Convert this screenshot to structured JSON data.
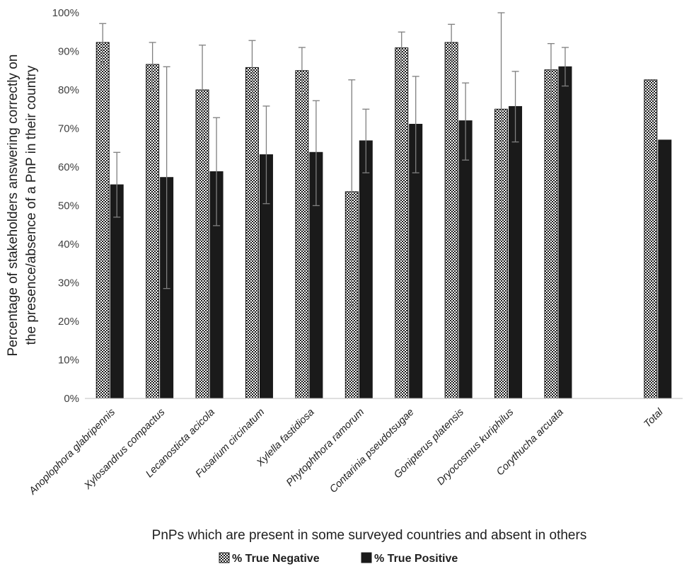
{
  "chart_data": {
    "type": "bar",
    "categories": [
      "Anoplophora glabripennis",
      "Xylosandrus compactus",
      "Lecanosticta acicola",
      "Fusarium circinatum",
      "Xylella fastidiosa",
      "Phytophthora ramorum",
      "Contarinia pseudotsugae",
      "Gonipterus platensis",
      "Dryocosmus kuriphilus",
      "Corythucha arcuata",
      "",
      "Total"
    ],
    "series": [
      {
        "name": "% True Negative",
        "pattern": "checkered",
        "values": [
          92.3,
          86.6,
          80.0,
          85.8,
          85.0,
          53.6,
          90.9,
          92.3,
          75.0,
          85.2,
          null,
          82.6
        ],
        "error_low": [
          87.0,
          80.0,
          67.5,
          78.5,
          79.0,
          24.0,
          86.0,
          87.5,
          49.0,
          78.0,
          null,
          null
        ],
        "error_high": [
          97.2,
          92.3,
          91.6,
          92.8,
          91.0,
          82.6,
          95.0,
          97.0,
          100.0,
          92.0,
          null,
          null
        ]
      },
      {
        "name": "% True Positive",
        "pattern": "solid",
        "values": [
          55.4,
          57.3,
          58.8,
          63.2,
          63.8,
          66.8,
          71.1,
          72.0,
          75.7,
          86.0,
          null,
          67.0
        ],
        "error_low": [
          47.0,
          28.5,
          44.8,
          50.5,
          50.0,
          58.5,
          58.5,
          61.8,
          66.5,
          81.0,
          null,
          null
        ],
        "error_high": [
          63.8,
          86.0,
          72.8,
          75.8,
          77.2,
          75.0,
          83.5,
          81.8,
          84.8,
          91.0,
          null,
          null
        ]
      }
    ],
    "y_ticks": [
      "0%",
      "10%",
      "20%",
      "30%",
      "40%",
      "50%",
      "60%",
      "70%",
      "80%",
      "90%",
      "100%"
    ],
    "ylim": [
      0,
      100
    ],
    "xlabel": "PnPs which are present in some surveyed countries and absent in others",
    "ylabel_line1": "Percentage of stakeholders answering correctly on",
    "ylabel_line2": "the presence/absence of a PnP in their country",
    "legend_position": "bottom",
    "grid": false
  }
}
